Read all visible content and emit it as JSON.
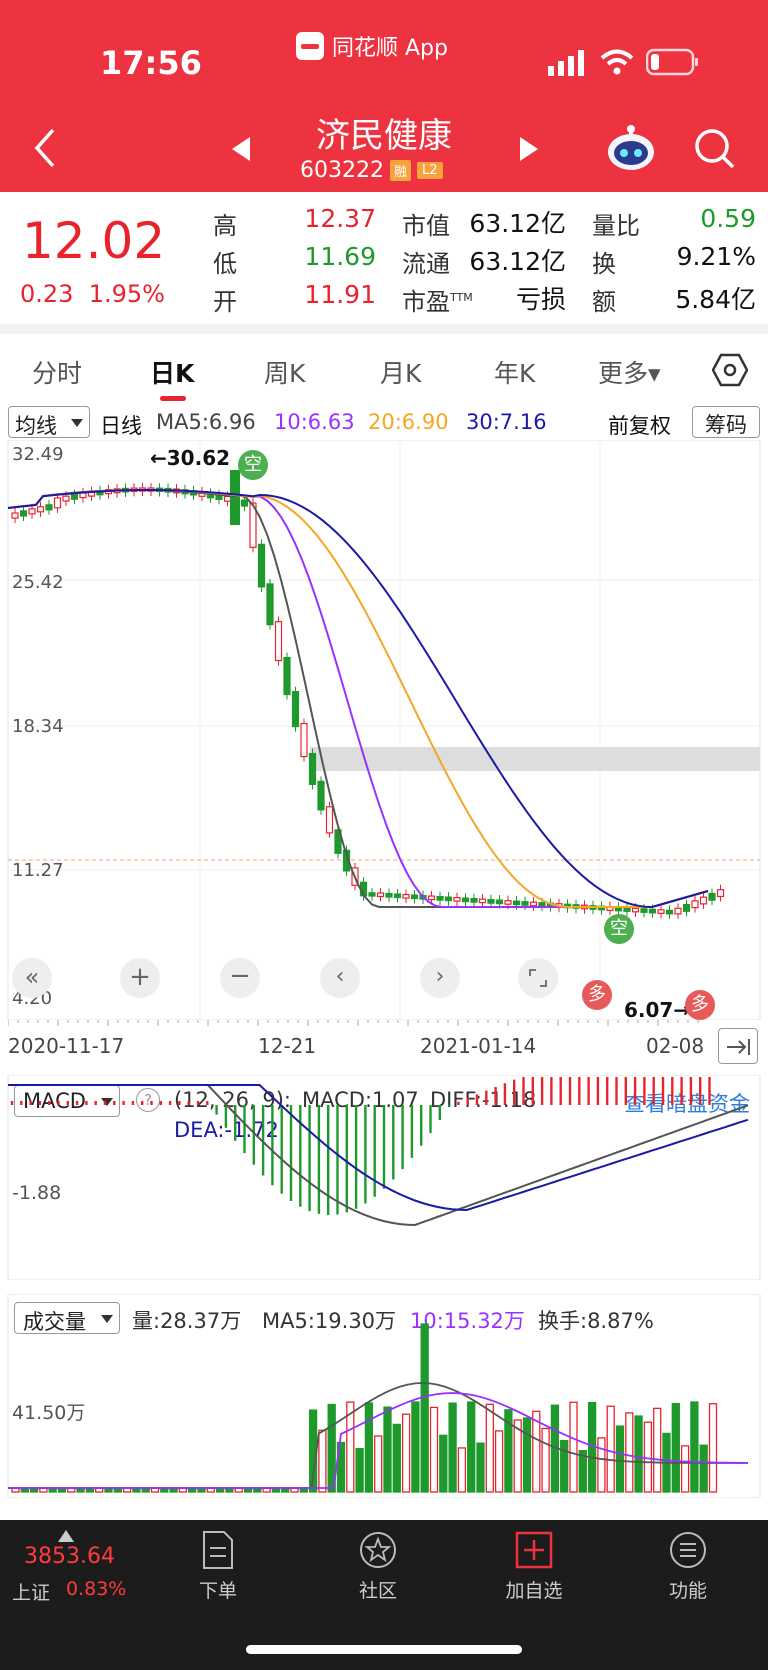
{
  "status_bar": {
    "time": "17:56",
    "app_name": "同花顺 App"
  },
  "header": {
    "title": "济民健康",
    "code": "603222",
    "tag_rong": "融",
    "tag_l2": "L2"
  },
  "quote": {
    "price": "12.02",
    "change": "0.23",
    "change_pct": "1.95%",
    "rows": [
      {
        "l1": "高",
        "v1": "12.37",
        "l2": "市值",
        "v2": "63.12亿",
        "l3": "量比",
        "v3": "0.59"
      },
      {
        "l1": "低",
        "v1": "11.69",
        "l2": "流通",
        "v2": "63.12亿",
        "l3": "换",
        "v3": "9.21%"
      },
      {
        "l1": "开",
        "v1": "11.91",
        "l2": "市盈",
        "v2": "亏损",
        "l3": "额",
        "v3": "5.84亿"
      }
    ],
    "pe_sup": "TTM"
  },
  "tabs": [
    "分时",
    "日K",
    "周K",
    "月K",
    "年K",
    "更多▾"
  ],
  "active_tab": "日K",
  "kline": {
    "indicator": "均线",
    "period": "日线",
    "ma5": "MA5:6.96",
    "ma10": "10:6.63",
    "ma20": "20:6.90",
    "ma30": "30:7.16",
    "adjust": "前复权",
    "chips_button": "筹码",
    "y_labels": [
      "32.49",
      "25.42",
      "18.34",
      "11.27",
      "4.20"
    ],
    "x_labels": [
      "2020-11-17",
      "12-21",
      "2021-01-14",
      "02-08"
    ],
    "high_marker": "←30.62",
    "low_marker": "6.07→",
    "signal_kong": "空",
    "signal_duo": "多",
    "colors": {
      "up": "#e8232d",
      "down": "#1e9a2c",
      "ma5": "#555555",
      "ma10": "#9b30ff",
      "ma20": "#f5a623",
      "ma30": "#1a1aa6"
    }
  },
  "macd": {
    "name": "MACD",
    "params": "(12, 26, 9):",
    "macd": "MACD:1.07",
    "diff": "DIFF:-1.18",
    "dea": "DEA:-1.72",
    "y_label": "-1.88",
    "link": "查看暗盘资金"
  },
  "volume": {
    "name": "成交量",
    "vol": "量:28.37万",
    "ma5": "MA5:19.30万",
    "ma10": "10:15.32万",
    "turnover": "换手:8.87%",
    "y_label": "41.50万"
  },
  "bottom_bar": {
    "index_value": "3853.64",
    "index_name": "上证",
    "index_pct": "0.83%",
    "items": [
      "下单",
      "社区",
      "加自选",
      "功能"
    ]
  },
  "chart_data": {
    "type": "candlestick",
    "x": [
      "2020-11-17",
      "12-21",
      "2021-01-14",
      "02-08"
    ],
    "ylim": [
      4.2,
      32.49
    ],
    "high": 30.62,
    "low": 6.07
  }
}
